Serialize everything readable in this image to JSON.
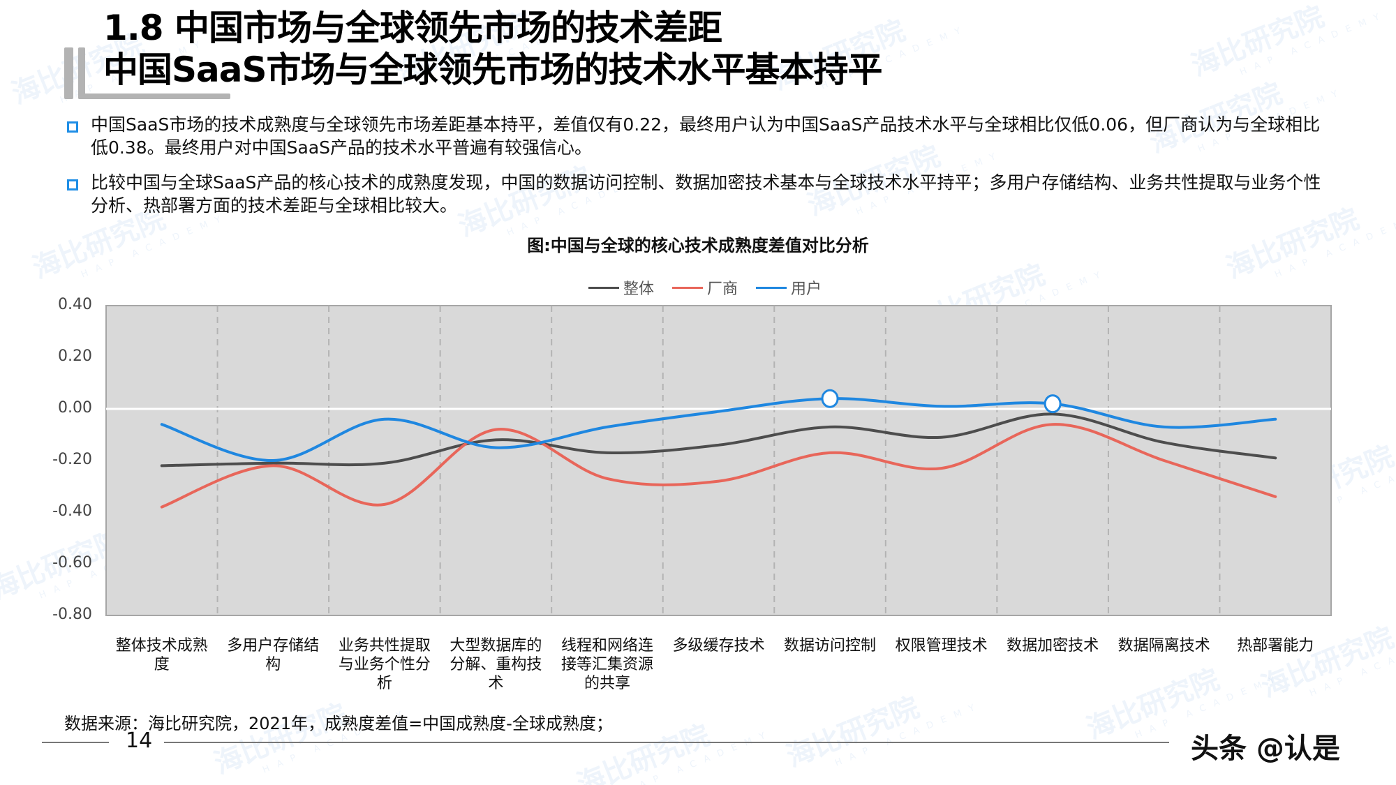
{
  "header": {
    "title_line1": "1.8 中国市场与全球领先市场的技术差距",
    "title_line2": "中国SaaS市场与全球领先市场的技术水平基本持平"
  },
  "bullets": [
    {
      "icon": "square-bullet-icon",
      "text": "中国SaaS市场的技术成熟度与全球领先市场差距基本持平，差值仅有0.22，最终用户认为中国SaaS产品技术水平与全球相比仅低0.06，但厂商认为与全球相比低0.38。最终用户对中国SaaS产品的技术水平普遍有较强信心。"
    },
    {
      "icon": "square-bullet-icon",
      "text": "比较中国与全球SaaS产品的核心技术的成熟度发现，中国的数据访问控制、数据加密技术基本与全球技术水平持平；多用户存储结构、业务共性提取与业务个性分析、热部署方面的技术差距与全球相比较大。"
    }
  ],
  "colors": {
    "accent": "#1f8ee6",
    "series_overall": "#4d4d4d",
    "series_vendor": "#e8665a",
    "series_user": "#1f87e0",
    "plot_bg": "#d9d9d9",
    "grid": "#b3b3b3"
  },
  "chart_data": {
    "type": "line",
    "title": "图:中国与全球的核心技术成熟度差值对比分析",
    "xlabel": "",
    "ylabel": "",
    "ylim": [
      -0.8,
      0.4
    ],
    "yticks": [
      "0.40",
      "0.20",
      "0.00",
      "-0.20",
      "-0.40",
      "-0.60",
      "-0.80"
    ],
    "ytick_values": [
      0.4,
      0.2,
      0.0,
      -0.2,
      -0.4,
      -0.6,
      -0.8
    ],
    "legend_position": "top",
    "grid": "vertical dashed",
    "smooth": true,
    "categories": [
      "整体技术成熟度",
      "多用户存储结构",
      "业务共性提取与业务个性分析",
      "大型数据库的分解、重构技术",
      "线程和网络连接等汇集资源的共享",
      "多级缓存技术",
      "数据访问控制",
      "权限管理技术",
      "数据加密技术",
      "数据隔离技术",
      "热部署能力"
    ],
    "category_label_lines": [
      [
        "整体技术成熟",
        "度"
      ],
      [
        "多用户存储结",
        "构"
      ],
      [
        "业务共性提取",
        "与业务个性分",
        "析"
      ],
      [
        "大型数据库的",
        "分解、重构技",
        "术"
      ],
      [
        "线程和网络连",
        "接等汇集资源",
        "的共享"
      ],
      [
        "多级缓存技术"
      ],
      [
        "数据访问控制"
      ],
      [
        "权限管理技术"
      ],
      [
        "数据加密技术"
      ],
      [
        "数据隔离技术"
      ],
      [
        "热部署能力"
      ]
    ],
    "series": [
      {
        "name": "整体",
        "color": "#4d4d4d",
        "values": [
          -0.22,
          -0.21,
          -0.21,
          -0.12,
          -0.17,
          -0.14,
          -0.07,
          -0.11,
          -0.02,
          -0.13,
          -0.19
        ]
      },
      {
        "name": "厂商",
        "color": "#e8665a",
        "values": [
          -0.38,
          -0.22,
          -0.37,
          -0.08,
          -0.27,
          -0.28,
          -0.17,
          -0.23,
          -0.06,
          -0.2,
          -0.34
        ]
      },
      {
        "name": "用户",
        "color": "#1f87e0",
        "values": [
          -0.06,
          -0.2,
          -0.04,
          -0.15,
          -0.07,
          -0.01,
          0.04,
          0.01,
          0.02,
          -0.07,
          -0.04
        ]
      }
    ],
    "highlighted_points": [
      {
        "series": "用户",
        "category": "数据访问控制",
        "value": 0.04
      },
      {
        "series": "用户",
        "category": "数据加密技术",
        "value": 0.02
      }
    ]
  },
  "legend": [
    {
      "label": "整体",
      "color": "#4d4d4d"
    },
    {
      "label": "厂商",
      "color": "#e8665a"
    },
    {
      "label": "用户",
      "color": "#1f87e0"
    }
  ],
  "footer": {
    "source": "数据来源：海比研究院，2021年，成熟度差值=中国成熟度-全球成熟度；",
    "page_number": "14",
    "credit": "头条 @认是"
  },
  "watermark": {
    "text": "海比研究院",
    "subtext": "HAP ACADEMY"
  }
}
